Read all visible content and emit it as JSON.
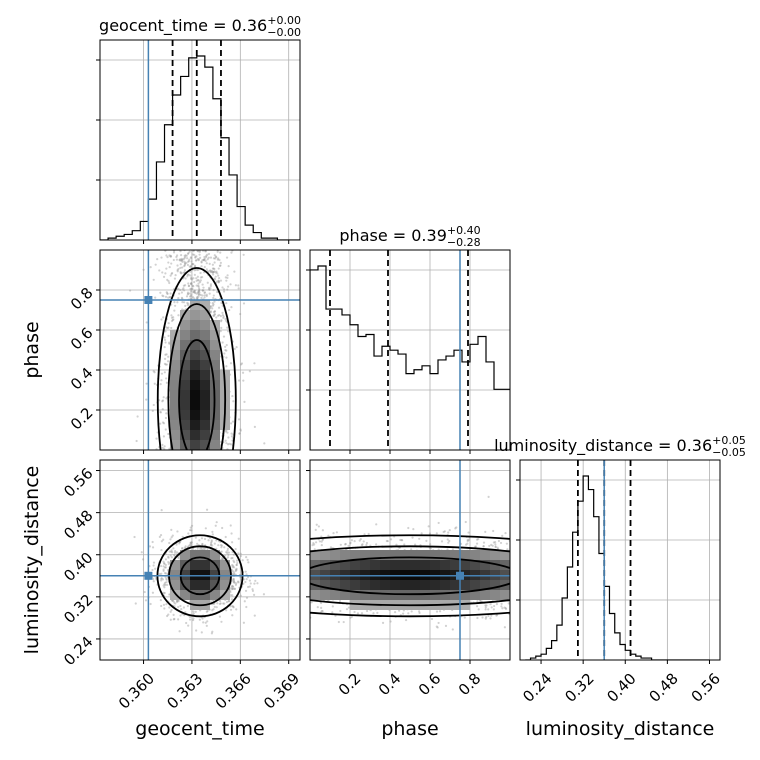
{
  "chart_data": {
    "type": "corner",
    "parameters": [
      {
        "key": "geocent_time",
        "label": "geocent_time",
        "range": [
          0.3573,
          0.3697
        ],
        "ticks": [
          0.36,
          0.363,
          0.366,
          0.369
        ],
        "tick_labels": [
          "0.360",
          "0.363",
          "0.366",
          "0.369"
        ],
        "truth": 0.3603,
        "title": {
          "base": "geocent_time = 0.36",
          "sup": "+0.00",
          "sub": "−0.00"
        },
        "quantiles": [
          0.3618,
          0.3633,
          0.3648
        ],
        "histogram": {
          "edges_start": 0.3573,
          "bin_width": 0.0005,
          "counts": [
            0,
            1,
            2,
            3,
            5,
            10,
            22,
            42,
            62,
            78,
            88,
            98,
            99,
            93,
            76,
            55,
            35,
            18,
            8,
            4,
            1,
            1,
            0,
            0,
            0
          ]
        }
      },
      {
        "key": "phase",
        "label": "phase",
        "range": [
          0.0,
          1.0
        ],
        "ticks": [
          0.2,
          0.4,
          0.6,
          0.8
        ],
        "tick_labels": [
          "0.2",
          "0.4",
          "0.6",
          "0.8"
        ],
        "truth": 0.75,
        "title": {
          "base": "phase = 0.39",
          "sup": "+0.40",
          "sub": "−0.28"
        },
        "quantiles": [
          0.1,
          0.39,
          0.79
        ],
        "histogram": {
          "edges_start": 0.0,
          "bin_width": 0.04,
          "counts": [
            92,
            94,
            72,
            72,
            69,
            64,
            58,
            59,
            48,
            53,
            51,
            49,
            39,
            41,
            43,
            39,
            46,
            48,
            51,
            45,
            54,
            58,
            45,
            31,
            31
          ]
        }
      },
      {
        "key": "luminosity_distance",
        "label": "luminosity_distance",
        "range": [
          0.2,
          0.58
        ],
        "ticks": [
          0.24,
          0.32,
          0.4,
          0.48,
          0.56
        ],
        "tick_labels": [
          "0.24",
          "0.32",
          "0.40",
          "0.48",
          "0.56"
        ],
        "truth": 0.36,
        "title": {
          "base": "luminosity_distance = 0.36",
          "sup": "+0.05",
          "sub": "−0.05"
        },
        "quantiles": [
          0.31,
          0.36,
          0.41
        ],
        "histogram": {
          "edges_start": 0.21,
          "bin_width": 0.01,
          "counts": [
            0,
            1,
            2,
            3,
            6,
            10,
            18,
            32,
            48,
            66,
            82,
            95,
            88,
            74,
            55,
            38,
            24,
            14,
            8,
            5,
            3,
            2,
            1,
            1,
            0,
            0,
            0,
            0,
            0,
            0,
            0,
            0,
            0,
            0,
            0
          ]
        }
      }
    ],
    "pairs": [
      {
        "x": "geocent_time",
        "y": "phase",
        "center": [
          0.3633,
          0.3
        ],
        "spread": [
          0.0011,
          0.25
        ]
      },
      {
        "x": "geocent_time",
        "y": "luminosity_distance",
        "center": [
          0.3635,
          0.36
        ],
        "spread": [
          0.0012,
          0.035
        ]
      },
      {
        "x": "phase",
        "y": "luminosity_distance",
        "center": [
          0.5,
          0.36
        ],
        "spread": [
          0.3,
          0.035
        ]
      }
    ],
    "truth_color": "#4682b4",
    "grid": true,
    "legend": "none"
  }
}
